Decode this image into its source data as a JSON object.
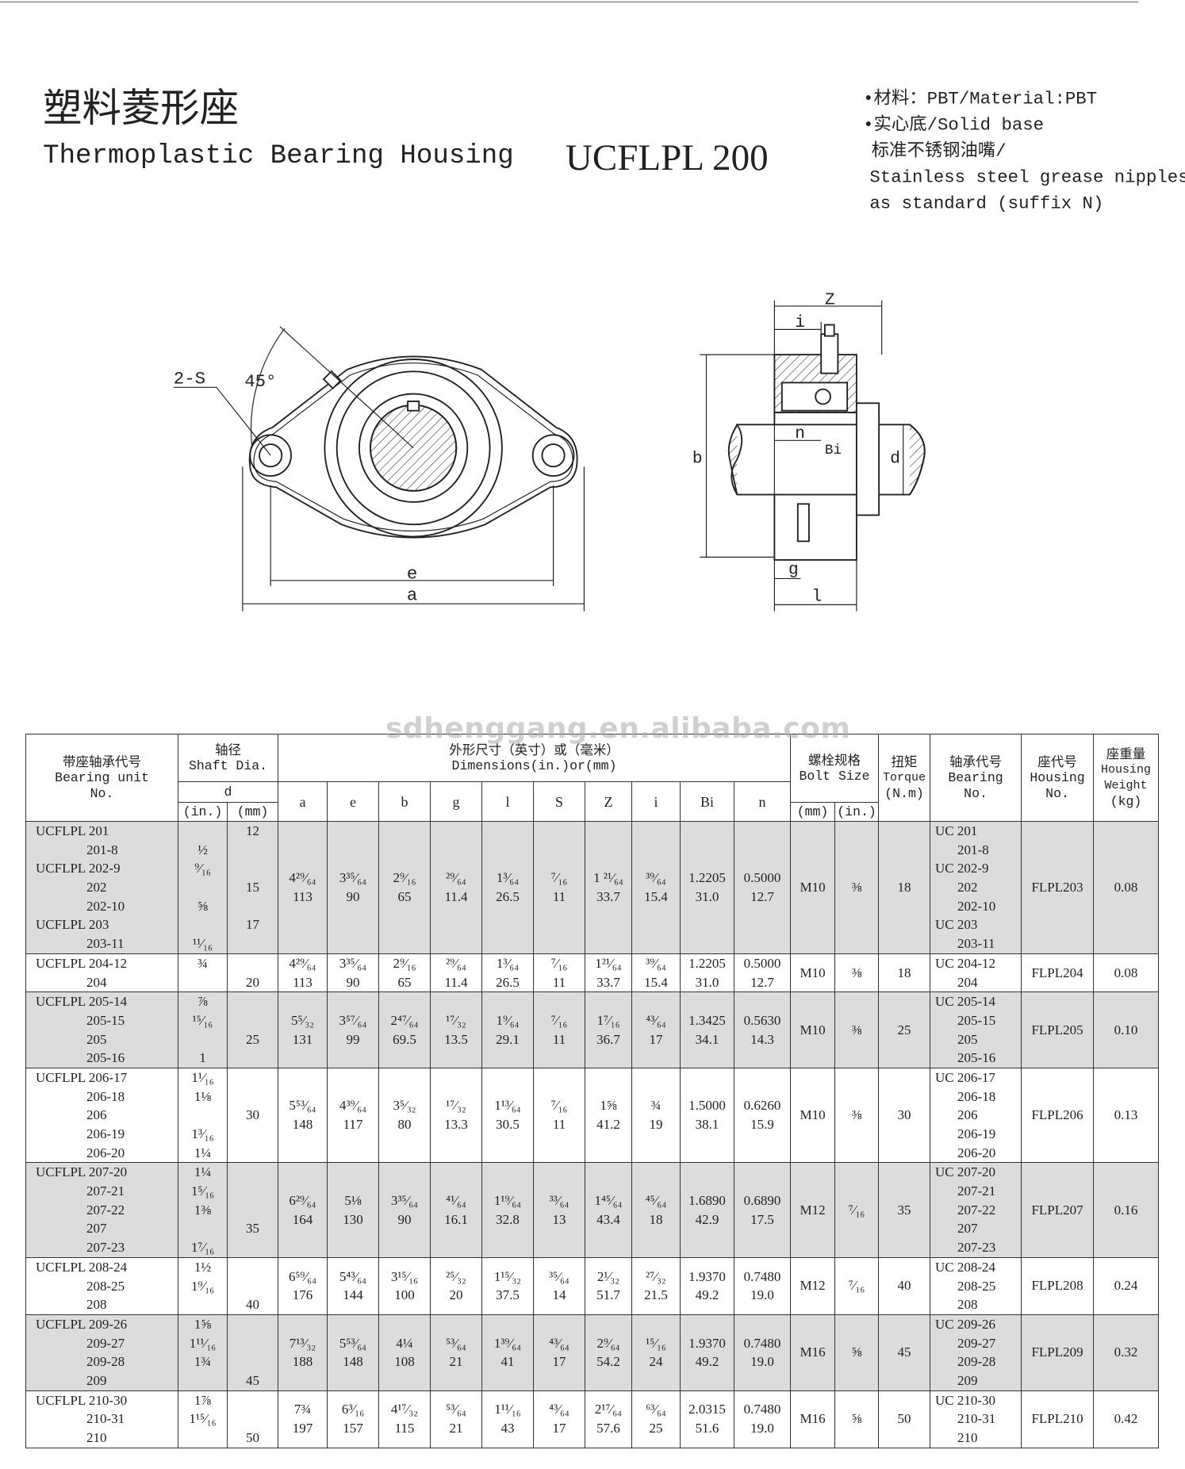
{
  "header": {
    "title_cn": "塑料菱形座",
    "title_en": "Thermoplastic Bearing Housing",
    "model": "UCFLPL 200",
    "notes": [
      "•材料：PBT/Material:PBT",
      "•实心底/Solid base",
      "标准不锈钢油嘴/",
      "Stainless steel grease nipples",
      "as standard (suffix N)"
    ]
  },
  "diagram": {
    "front": {
      "holes": "2-S",
      "angle": "45°",
      "e": "e",
      "a": "a"
    },
    "side": {
      "Z": "Z",
      "i": "i",
      "n": "n",
      "Bi": "Bi",
      "b": "b",
      "d": "d",
      "g": "g",
      "l": "l"
    }
  },
  "watermark": "sdhenggang.en.alibaba.com",
  "table": {
    "header": {
      "unit": [
        "带座轴承代号",
        "Bearing unit",
        "No."
      ],
      "shaft": [
        "轴径",
        "Shaft Dia."
      ],
      "shaft_d": "d",
      "shaft_in": "(in.)",
      "shaft_mm": "(mm)",
      "dims": [
        "外形尺寸（英寸）或（毫米）",
        "Dimensions(in.)or(mm)"
      ],
      "dim_cols": [
        "a",
        "e",
        "b",
        "g",
        "l",
        "S",
        "Z",
        "i",
        "Bi",
        "n"
      ],
      "bolt": [
        "螺栓规格",
        "Bolt Size"
      ],
      "bolt_mm": "(mm)",
      "bolt_in": "(in.)",
      "torque": [
        "扭矩",
        "Torque",
        "(N.m)"
      ],
      "bearing": [
        "轴承代号",
        "Bearing",
        "No."
      ],
      "housing": [
        "座代号",
        "Housing",
        "No."
      ],
      "weight": [
        "座重量",
        "Housing",
        "Weight",
        "(kg)"
      ]
    },
    "groups": [
      {
        "units": [
          "UCFLPL 201",
          "201-8",
          "UCFLPL 202-9",
          "202",
          "202-10",
          "UCFLPL 203",
          "203-11"
        ],
        "d_in": [
          null,
          "½",
          "⁹⁄₁₆",
          null,
          "⅝",
          null,
          "¹¹⁄₁₆"
        ],
        "d_mm": [
          "12",
          null,
          null,
          "15",
          null,
          "17",
          null
        ],
        "dims": [
          [
            "4²⁹⁄₆₄",
            "113"
          ],
          [
            "3³⁵⁄₆₄",
            "90"
          ],
          [
            "2⁹⁄₁₆",
            "65"
          ],
          [
            "²⁹⁄₆₄",
            "11.4"
          ],
          [
            "1³⁄₆₄",
            "26.5"
          ],
          [
            "⁷⁄₁₆",
            "11"
          ],
          [
            "1 ²¹⁄₆₄",
            "33.7"
          ],
          [
            "³⁹⁄₆₄",
            "15.4"
          ],
          [
            "1.2205",
            "31.0"
          ],
          [
            "0.5000",
            "12.7"
          ]
        ],
        "bolt_mm": "M10",
        "bolt_in": "⅜",
        "torque": "18",
        "bearing": [
          "UC 201",
          "201-8",
          "UC 202-9",
          "202",
          "202-10",
          "UC 203",
          "203-11"
        ],
        "housing": "FLPL203",
        "weight": "0.08"
      },
      {
        "units": [
          "UCFLPL 204-12",
          "204"
        ],
        "d_in": [
          "¾",
          null
        ],
        "d_mm": [
          null,
          "20"
        ],
        "dims": [
          [
            "4²⁹⁄₆₄",
            "113"
          ],
          [
            "3³⁵⁄₆₄",
            "90"
          ],
          [
            "2⁹⁄₁₆",
            "65"
          ],
          [
            "²⁹⁄₆₄",
            "11.4"
          ],
          [
            "1³⁄₆₄",
            "26.5"
          ],
          [
            "⁷⁄₁₆",
            "11"
          ],
          [
            "1²¹⁄₆₄",
            "33.7"
          ],
          [
            "³⁹⁄₆₄",
            "15.4"
          ],
          [
            "1.2205",
            "31.0"
          ],
          [
            "0.5000",
            "12.7"
          ]
        ],
        "bolt_mm": "M10",
        "bolt_in": "⅜",
        "torque": "18",
        "bearing": [
          "UC 204-12",
          "204"
        ],
        "housing": "FLPL204",
        "weight": "0.08"
      },
      {
        "units": [
          "UCFLPL 205-14",
          "205-15",
          "205",
          "205-16"
        ],
        "d_in": [
          "⅞",
          "¹⁵⁄₁₆",
          null,
          "1"
        ],
        "d_mm": [
          null,
          null,
          "25",
          null
        ],
        "dims": [
          [
            "5⁵⁄₃₂",
            "131"
          ],
          [
            "3⁵⁷⁄₆₄",
            "99"
          ],
          [
            "2⁴⁷⁄₆₄",
            "69.5"
          ],
          [
            "¹⁷⁄₃₂",
            "13.5"
          ],
          [
            "1⁹⁄₆₄",
            "29.1"
          ],
          [
            "⁷⁄₁₆",
            "11"
          ],
          [
            "1⁷⁄₁₆",
            "36.7"
          ],
          [
            "⁴³⁄₆₄",
            "17"
          ],
          [
            "1.3425",
            "34.1"
          ],
          [
            "0.5630",
            "14.3"
          ]
        ],
        "bolt_mm": "M10",
        "bolt_in": "⅜",
        "torque": "25",
        "bearing": [
          "UC 205-14",
          "205-15",
          "205",
          "205-16"
        ],
        "housing": "FLPL205",
        "weight": "0.10"
      },
      {
        "units": [
          "UCFLPL 206-17",
          "206-18",
          "206",
          "206-19",
          "206-20"
        ],
        "d_in": [
          "1¹⁄₁₆",
          "1⅛",
          null,
          "1³⁄₁₆",
          "1¼"
        ],
        "d_mm": [
          null,
          null,
          "30",
          null,
          null
        ],
        "dims": [
          [
            "5⁵³⁄₆₄",
            "148"
          ],
          [
            "4³⁹⁄₆₄",
            "117"
          ],
          [
            "3⁵⁄₃₂",
            "80"
          ],
          [
            "¹⁷⁄₃₂",
            "13.3"
          ],
          [
            "1¹³⁄₆₄",
            "30.5"
          ],
          [
            "⁷⁄₁₆",
            "11"
          ],
          [
            "1⅝",
            "41.2"
          ],
          [
            "¾",
            "19"
          ],
          [
            "1.5000",
            "38.1"
          ],
          [
            "0.6260",
            "15.9"
          ]
        ],
        "bolt_mm": "M10",
        "bolt_in": "⅜",
        "torque": "30",
        "bearing": [
          "UC 206-17",
          "206-18",
          "206",
          "206-19",
          "206-20"
        ],
        "housing": "FLPL206",
        "weight": "0.13"
      },
      {
        "units": [
          "UCFLPL 207-20",
          "207-21",
          "207-22",
          "207",
          "207-23"
        ],
        "d_in": [
          "1¼",
          "1⁵⁄₁₆",
          "1⅜",
          null,
          "1⁷⁄₁₆"
        ],
        "d_mm": [
          null,
          null,
          null,
          "35",
          null
        ],
        "dims": [
          [
            "6²⁹⁄₆₄",
            "164"
          ],
          [
            "5⅛",
            "130"
          ],
          [
            "3³⁵⁄₆₄",
            "90"
          ],
          [
            "⁴¹⁄₆₄",
            "16.1"
          ],
          [
            "1¹⁹⁄₆₄",
            "32.8"
          ],
          [
            "³³⁄₆₄",
            "13"
          ],
          [
            "1⁴⁵⁄₆₄",
            "43.4"
          ],
          [
            "⁴⁵⁄₆₄",
            "18"
          ],
          [
            "1.6890",
            "42.9"
          ],
          [
            "0.6890",
            "17.5"
          ]
        ],
        "bolt_mm": "M12",
        "bolt_in": "⁷⁄₁₆",
        "torque": "35",
        "bearing": [
          "UC 207-20",
          "207-21",
          "207-22",
          "207",
          "207-23"
        ],
        "housing": "FLPL207",
        "weight": "0.16"
      },
      {
        "units": [
          "UCFLPL 208-24",
          "208-25",
          "208"
        ],
        "d_in": [
          "1½",
          "1⁹⁄₁₆",
          null
        ],
        "d_mm": [
          null,
          null,
          "40"
        ],
        "dims": [
          [
            "6⁵⁹⁄₆₄",
            "176"
          ],
          [
            "5⁴³⁄₆₄",
            "144"
          ],
          [
            "3¹⁵⁄₁₆",
            "100"
          ],
          [
            "²⁵⁄₃₂",
            "20"
          ],
          [
            "1¹⁵⁄₃₂",
            "37.5"
          ],
          [
            "³⁵⁄₆₄",
            "14"
          ],
          [
            "2¹⁄₃₂",
            "51.7"
          ],
          [
            "²⁷⁄₃₂",
            "21.5"
          ],
          [
            "1.9370",
            "49.2"
          ],
          [
            "0.7480",
            "19.0"
          ]
        ],
        "bolt_mm": "M12",
        "bolt_in": "⁷⁄₁₆",
        "torque": "40",
        "bearing": [
          "UC 208-24",
          "208-25",
          "208"
        ],
        "housing": "FLPL208",
        "weight": "0.24"
      },
      {
        "units": [
          "UCFLPL 209-26",
          "209-27",
          "209-28",
          "209"
        ],
        "d_in": [
          "1⅝",
          "1¹¹⁄₁₆",
          "1¾",
          null
        ],
        "d_mm": [
          null,
          null,
          null,
          "45"
        ],
        "dims": [
          [
            "7¹³⁄₃₂",
            "188"
          ],
          [
            "5⁵³⁄₆₄",
            "148"
          ],
          [
            "4¼",
            "108"
          ],
          [
            "⁵³⁄₆₄",
            "21"
          ],
          [
            "1³⁹⁄₆₄",
            "41"
          ],
          [
            "⁴³⁄₆₄",
            "17"
          ],
          [
            "2⁹⁄₆₄",
            "54.2"
          ],
          [
            "¹⁵⁄₁₆",
            "24"
          ],
          [
            "1.9370",
            "49.2"
          ],
          [
            "0.7480",
            "19.0"
          ]
        ],
        "bolt_mm": "M16",
        "bolt_in": "⅝",
        "torque": "45",
        "bearing": [
          "UC 209-26",
          "209-27",
          "209-28",
          "209"
        ],
        "housing": "FLPL209",
        "weight": "0.32"
      },
      {
        "units": [
          "UCFLPL 210-30",
          "210-31",
          "210"
        ],
        "d_in": [
          "1⅞",
          "1¹⁵⁄₁₆",
          null
        ],
        "d_mm": [
          null,
          null,
          "50"
        ],
        "dims": [
          [
            "7¾",
            "197"
          ],
          [
            "6³⁄₁₆",
            "157"
          ],
          [
            "4¹⁷⁄₃₂",
            "115"
          ],
          [
            "⁵³⁄₆₄",
            "21"
          ],
          [
            "1¹¹⁄₁₆",
            "43"
          ],
          [
            "⁴³⁄₆₄",
            "17"
          ],
          [
            "2¹⁷⁄₆₄",
            "57.6"
          ],
          [
            "⁶³⁄₆₄",
            "25"
          ],
          [
            "2.0315",
            "51.6"
          ],
          [
            "0.7480",
            "19.0"
          ]
        ],
        "bolt_mm": "M16",
        "bolt_in": "⅝",
        "torque": "50",
        "bearing": [
          "UC 210-30",
          "210-31",
          "210"
        ],
        "housing": "FLPL210",
        "weight": "0.42"
      }
    ]
  }
}
